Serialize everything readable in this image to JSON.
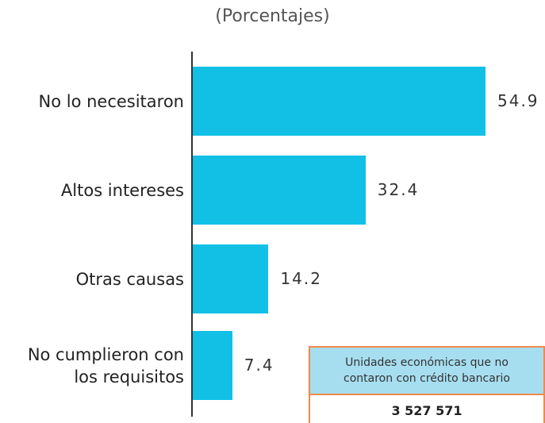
{
  "chart_data": {
    "type": "bar",
    "orientation": "horizontal",
    "subtitle": "(Porcentajes)",
    "categories": [
      "No lo necesitaron",
      "Altos intereses",
      "Otras causas",
      "No cumplieron con los requisitos"
    ],
    "values": [
      54.9,
      32.4,
      14.2,
      7.4
    ],
    "color": "#12c0e6",
    "annotation": {
      "label": "Unidades económicas que no contaron con crédito bancario",
      "value": "3 527 571"
    }
  }
}
